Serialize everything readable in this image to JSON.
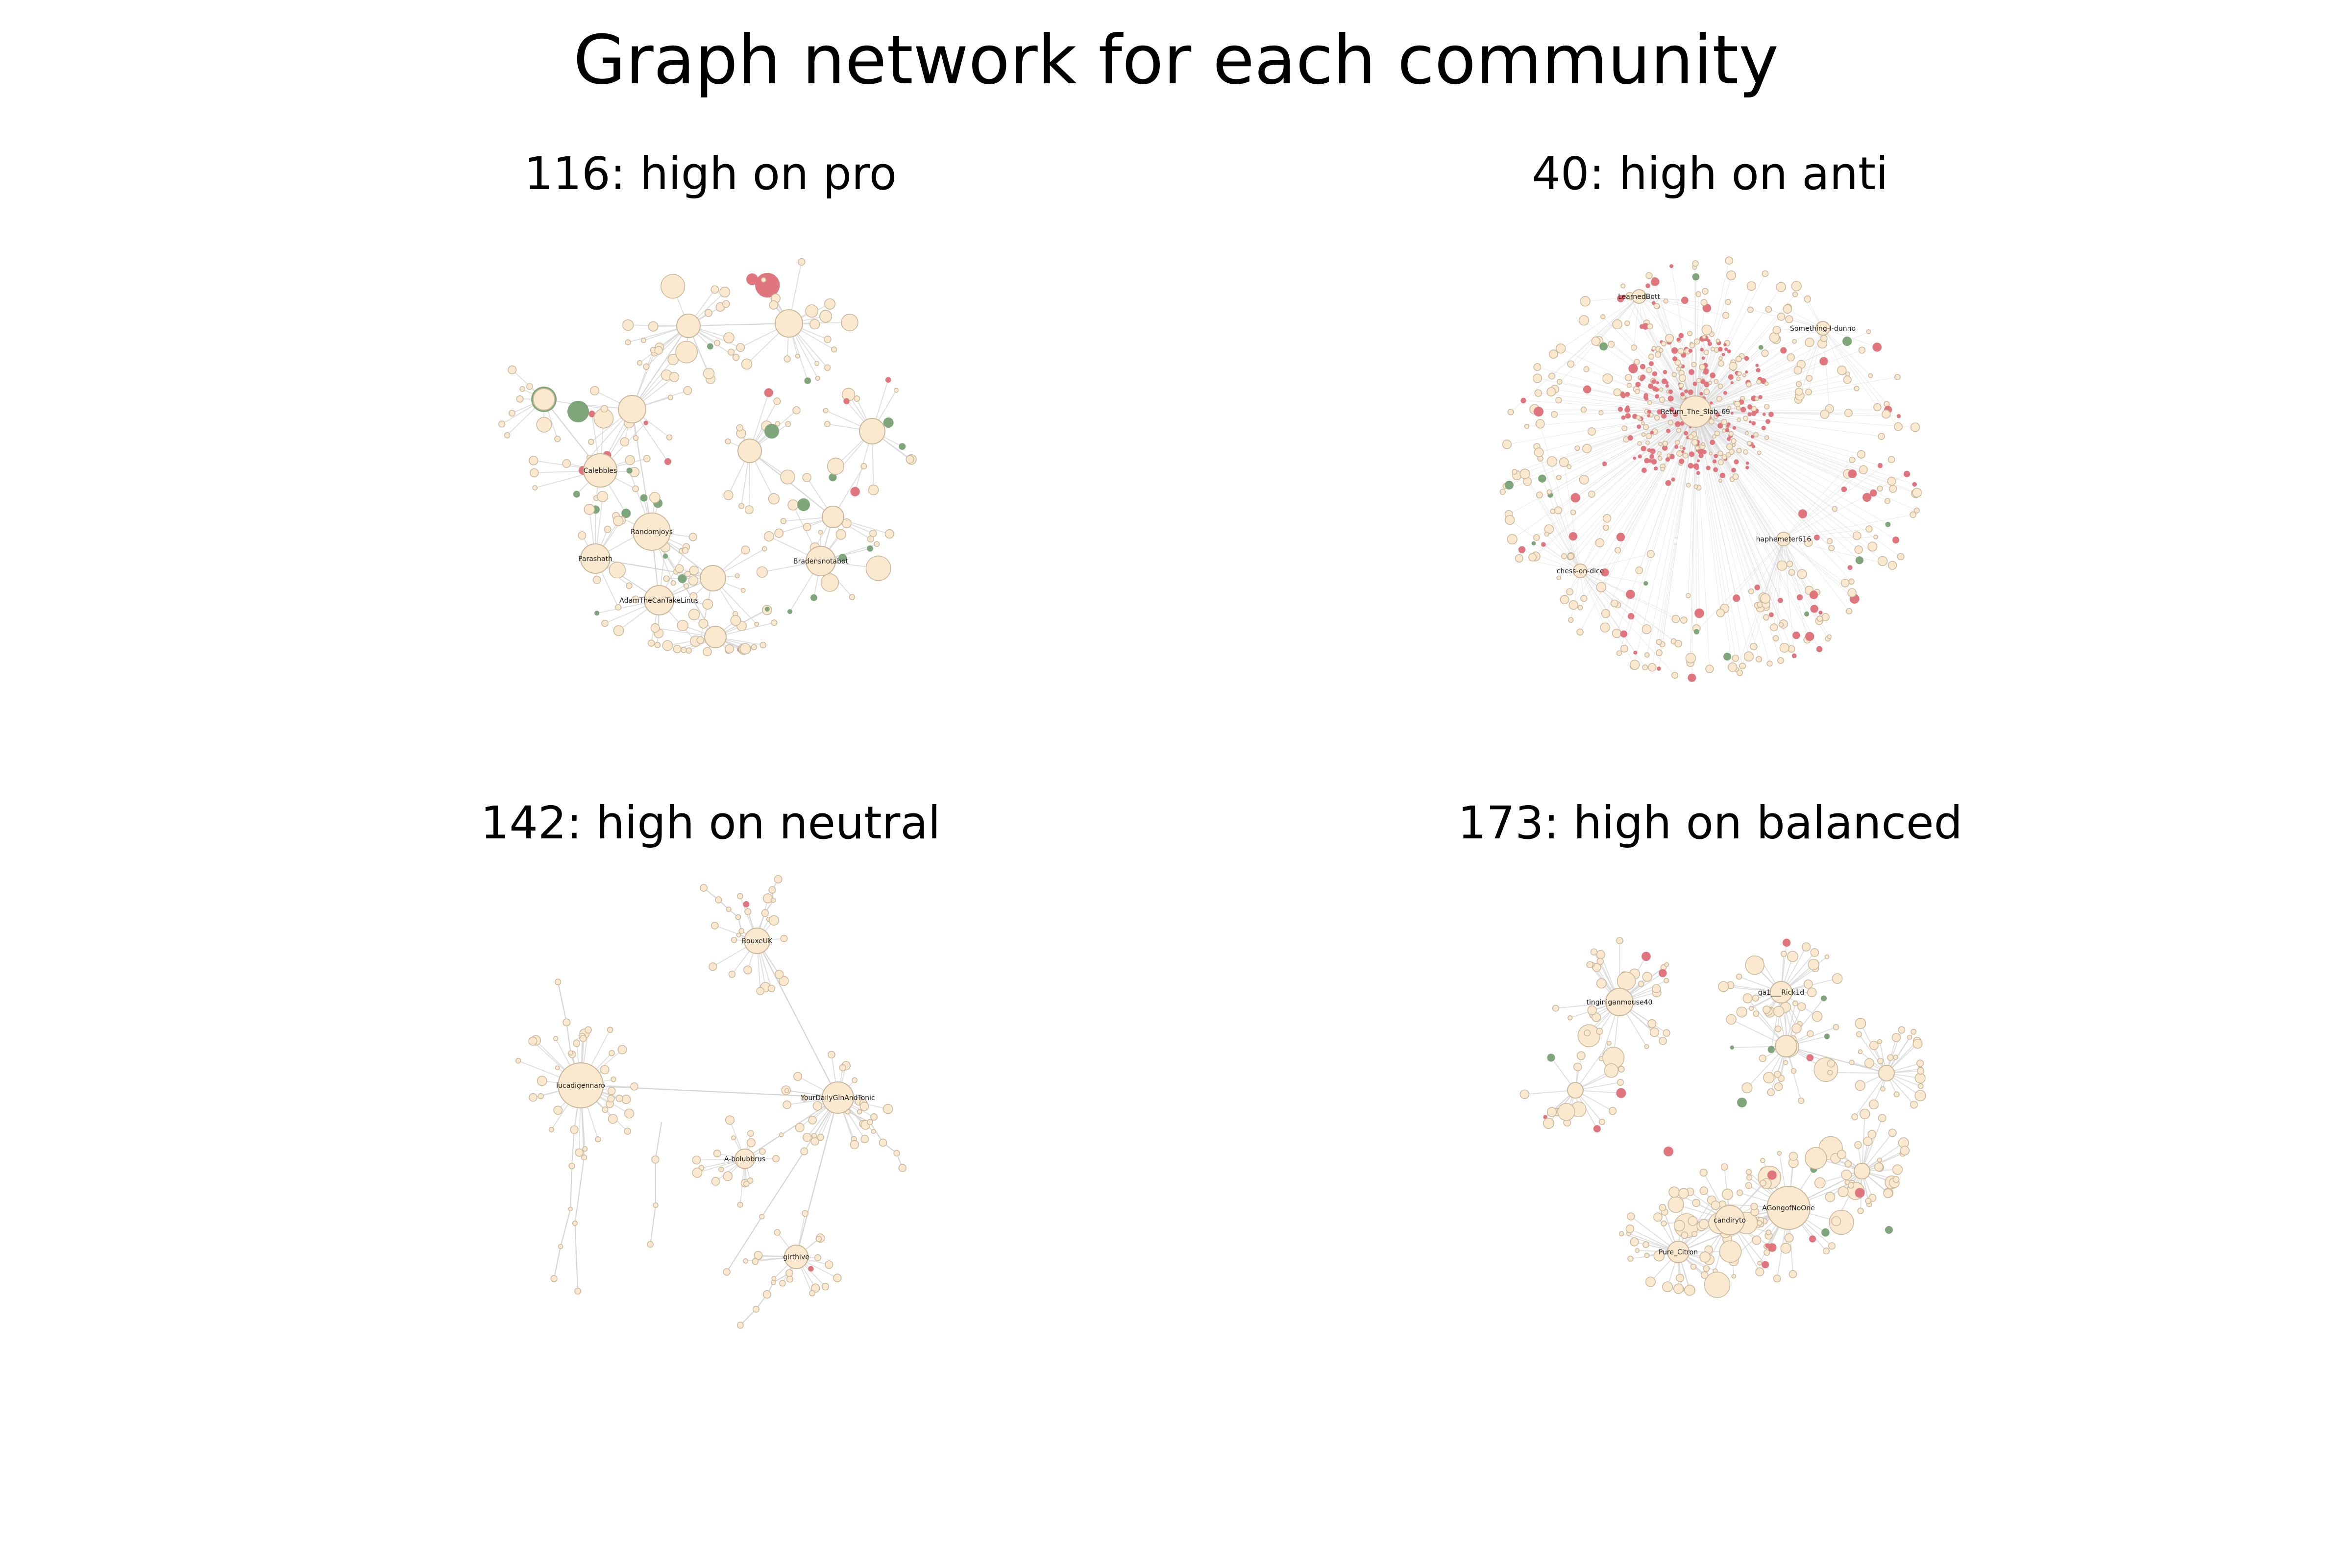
{
  "figure": {
    "title": "Graph network for each community"
  },
  "colors": {
    "neutral": "#fbe9cf",
    "neutral_edge": "#c9b79c",
    "anti": "#e0757d",
    "pro": "#7fa67a",
    "edge": "#d6d6d6",
    "label": "#222222"
  },
  "panels": [
    {
      "title": "116: high on pro",
      "layout": "clusters",
      "center": [
        1450,
        900
      ],
      "radius": 430,
      "hubs": [
        {
          "label": "Calebbles",
          "pos": [
            1225,
            960
          ],
          "size": 34
        },
        {
          "label": "Randomjoys",
          "pos": [
            1330,
            1085
          ],
          "size": 38
        },
        {
          "label": "Parashath",
          "pos": [
            1215,
            1140
          ],
          "size": 30
        },
        {
          "label": "AdamTheCanTakeLinus",
          "pos": [
            1345,
            1225
          ],
          "size": 30
        },
        {
          "label": "Bradensnotabot",
          "pos": [
            1675,
            1145
          ],
          "size": 30
        },
        {
          "label": "",
          "pos": [
            1110,
            815
          ],
          "size": 22
        },
        {
          "label": "",
          "pos": [
            1290,
            835
          ],
          "size": 28
        },
        {
          "label": "",
          "pos": [
            1405,
            665
          ],
          "size": 24
        },
        {
          "label": "",
          "pos": [
            1610,
            660
          ],
          "size": 28
        },
        {
          "label": "",
          "pos": [
            1530,
            920
          ],
          "size": 24
        },
        {
          "label": "",
          "pos": [
            1780,
            880
          ],
          "size": 26
        },
        {
          "label": "",
          "pos": [
            1700,
            1055
          ],
          "size": 22
        },
        {
          "label": "",
          "pos": [
            1455,
            1180
          ],
          "size": 26
        },
        {
          "label": "",
          "pos": [
            1460,
            1300
          ],
          "size": 22
        }
      ],
      "highlights": [
        {
          "pos": [
            1110,
            815
          ],
          "color": "pro",
          "size": 26
        },
        {
          "pos": [
            1180,
            840
          ],
          "color": "pro",
          "size": 22
        },
        {
          "pos": [
            1575,
            880
          ],
          "color": "pro",
          "size": 15
        },
        {
          "pos": [
            1640,
            1030
          ],
          "color": "pro",
          "size": 13
        },
        {
          "pos": [
            1535,
            570
          ],
          "color": "anti",
          "size": 12
        },
        {
          "pos": [
            1190,
            960
          ],
          "color": "anti",
          "size": 9
        }
      ],
      "mix": {
        "anti": 0.06,
        "pro": 0.07
      },
      "node_count": 230
    },
    {
      "title": "40: high on anti",
      "layout": "core",
      "center": [
        3490,
        955
      ],
      "radius": 430,
      "hubs": [
        {
          "label": "Return_The_Slab_69",
          "pos": [
            3460,
            840
          ],
          "size": 32
        },
        {
          "label": "LearnedBott",
          "pos": [
            3345,
            605
          ],
          "size": 14
        },
        {
          "label": "Something-I-dunno",
          "pos": [
            3720,
            670
          ],
          "size": 14
        },
        {
          "label": "haphemeter616",
          "pos": [
            3640,
            1100
          ],
          "size": 14
        },
        {
          "label": "chess-on-dice",
          "pos": [
            3225,
            1165
          ],
          "size": 14
        }
      ],
      "highlights": [
        {
          "pos": [
            3140,
            840
          ],
          "color": "anti",
          "size": 10
        },
        {
          "pos": [
            3080,
            990
          ],
          "color": "pro",
          "size": 9
        },
        {
          "pos": [
            3810,
            1015
          ],
          "color": "anti",
          "size": 9
        },
        {
          "pos": [
            3525,
            1340
          ],
          "color": "pro",
          "size": 8
        }
      ],
      "mix": {
        "anti": 0.17,
        "pro": 0.03
      },
      "node_count": 640
    },
    {
      "title": "142: high on neutral",
      "layout": "tree",
      "center": [
        1450,
        2200
      ],
      "radius": 430,
      "hubs": [
        {
          "label": "lucadigennaro",
          "pos": [
            1185,
            2215
          ],
          "size": 46
        },
        {
          "label": "YourDailyGinAndTonic",
          "pos": [
            1710,
            2240
          ],
          "size": 32
        },
        {
          "label": "RouxeUK",
          "pos": [
            1545,
            1920
          ],
          "size": 26
        },
        {
          "label": "A-bolubbrus",
          "pos": [
            1520,
            2365
          ],
          "size": 20
        },
        {
          "label": "girthive",
          "pos": [
            1625,
            2565
          ],
          "size": 24
        }
      ],
      "highlights": [],
      "mix": {
        "anti": 0.01,
        "pro": 0.01
      },
      "node_count": 120
    },
    {
      "title": "173: high on balanced",
      "layout": "clusters",
      "center": [
        3490,
        2205
      ],
      "radius": 430,
      "hubs": [
        {
          "label": "tinginiganmouse40",
          "pos": [
            3305,
            2045
          ],
          "size": 28
        },
        {
          "label": "ga1___Rick1d",
          "pos": [
            3635,
            2025
          ],
          "size": 22
        },
        {
          "label": "AGongofNoOne",
          "pos": [
            3650,
            2465
          ],
          "size": 44
        },
        {
          "label": "candiryto",
          "pos": [
            3530,
            2490
          ],
          "size": 30
        },
        {
          "label": "Pure_Citron",
          "pos": [
            3425,
            2555
          ],
          "size": 22
        },
        {
          "label": "",
          "pos": [
            3645,
            2135
          ],
          "size": 22
        },
        {
          "label": "",
          "pos": [
            3215,
            2225
          ],
          "size": 16
        },
        {
          "label": "",
          "pos": [
            3850,
            2190
          ],
          "size": 16
        },
        {
          "label": "",
          "pos": [
            3800,
            2390
          ],
          "size": 16
        }
      ],
      "highlights": [
        {
          "pos": [
            3555,
            2250
          ],
          "color": "pro",
          "size": 10
        },
        {
          "pos": [
            3405,
            2350
          ],
          "color": "anti",
          "size": 10
        },
        {
          "pos": [
            3855,
            2510
          ],
          "color": "pro",
          "size": 8
        }
      ],
      "mix": {
        "anti": 0.06,
        "pro": 0.02
      },
      "node_count": 260
    }
  ]
}
